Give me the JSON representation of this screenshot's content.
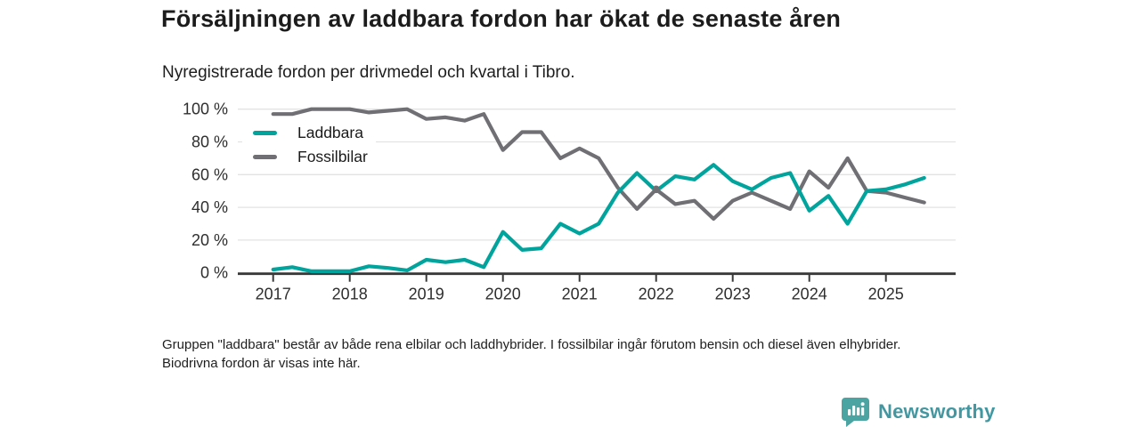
{
  "title": "Försäljningen av laddbara fordon har ökat de senaste åren",
  "subtitle": "Nyregistrerade fordon per drivmedel och kvartal i Tibro.",
  "footnote": "Gruppen \"laddbara\" består av både rena elbilar och laddhybrider. I fossilbilar ingår förutom bensin och diesel även elhybrider. Biodrivna fordon är visas inte här.",
  "brand": {
    "name": "Newsworthy",
    "text_color": "#4397a0",
    "icon": "bar-chart-map-pin-icon",
    "icon_color": "#4ba4a2"
  },
  "chart_data": {
    "type": "line",
    "title": "Försäljningen av laddbara fordon har ökat de senaste åren",
    "subtitle": "Nyregistrerade fordon per drivmedel och kvartal i Tibro.",
    "x_unit": "quarter",
    "x_start": "2017 Q1",
    "x_end": "2025 Q3",
    "x_tick_labels": [
      "2017",
      "2018",
      "2019",
      "2020",
      "2021",
      "2022",
      "2023",
      "2024",
      "2025"
    ],
    "y_tick_values": [
      0,
      20,
      40,
      60,
      80,
      100
    ],
    "y_tick_labels": [
      "0 %",
      "20 %",
      "40 %",
      "60 %",
      "80 %",
      "100 %"
    ],
    "ylim": [
      0,
      100
    ],
    "grid": true,
    "legend_position": "top-left-inset",
    "axis_color": "#383838",
    "grid_color": "#e3e3e3",
    "tick_label_color": "#2e2e2e",
    "series": [
      {
        "name": "Fossilbilar",
        "color": "#6f6f74",
        "values": [
          97,
          97,
          100,
          100,
          100,
          98,
          99,
          100,
          94,
          95,
          93,
          97,
          75,
          86,
          86,
          70,
          76,
          70,
          52,
          39,
          51,
          42,
          44,
          33,
          44,
          49,
          44,
          39,
          62,
          52,
          70,
          50,
          49,
          46,
          43
        ]
      },
      {
        "name": "Laddbara",
        "color": "#00a49c",
        "values": [
          2,
          3.5,
          1,
          1,
          1,
          4,
          3,
          1.5,
          8,
          6.5,
          8,
          3.5,
          25,
          14,
          15,
          30,
          24,
          30,
          49,
          61,
          50,
          59,
          57,
          66,
          56,
          51,
          58,
          61,
          38,
          47,
          30,
          50,
          51,
          54,
          58
        ]
      }
    ],
    "markers": [
      {
        "series": "Fossilbilar",
        "index": 20,
        "label": "2022 Q1",
        "value": 51
      }
    ]
  }
}
